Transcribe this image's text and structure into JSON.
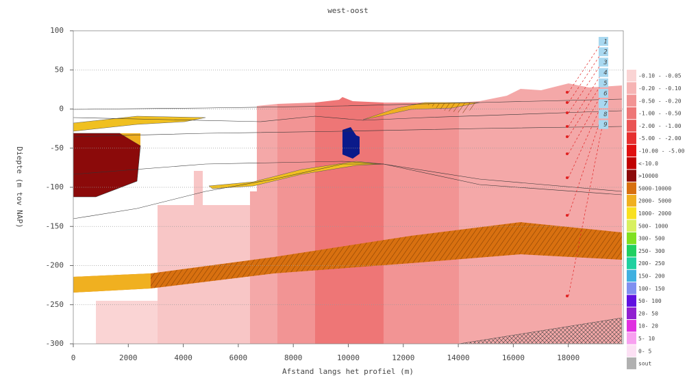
{
  "chart_data": {
    "type": "cross-section",
    "title": "west-oost",
    "xlabel": "Afstand langs het profiel (m)",
    "ylabel": "Diepte (m tov NAP)",
    "xlim": [
      0,
      20000
    ],
    "ylim": [
      -300,
      100
    ],
    "xticks": [
      0,
      2000,
      4000,
      6000,
      8000,
      10000,
      12000,
      14000,
      16000,
      18000
    ],
    "yticks": [
      100,
      50,
      0,
      -50,
      -100,
      -150,
      -200,
      -250,
      -300
    ],
    "grid": true,
    "legend": [
      {
        "label": "-0.10 - -0.05",
        "color": "#fad4d4"
      },
      {
        "label": "-0.20 - -0.10",
        "color": "#f6b4b4"
      },
      {
        "label": "-0.50 - -0.20",
        "color": "#f29494"
      },
      {
        "label": "-1.00 - -0.50",
        "color": "#ee7676"
      },
      {
        "label": "-2.00 - -1.00",
        "color": "#ea5454"
      },
      {
        "label": "-5.00 - -2.00",
        "color": "#e63030"
      },
      {
        "label": "-10.00 - -5.00",
        "color": "#e01010"
      },
      {
        "label": "<-10.0",
        "color": "#c00000"
      },
      {
        "label": ">10000",
        "color": "#8b0a0a"
      },
      {
        "label": "5000-10000",
        "color": "#d87010"
      },
      {
        "label": "2000- 5000",
        "color": "#f0b020"
      },
      {
        "label": "1000- 2000",
        "color": "#f8e020"
      },
      {
        "label": "500- 1000",
        "color": "#d8f060"
      },
      {
        "label": "300- 500",
        "color": "#80e020"
      },
      {
        "label": "250- 300",
        "color": "#20d060"
      },
      {
        "label": "200- 250",
        "color": "#20d0a0"
      },
      {
        "label": "150- 200",
        "color": "#40b0e0"
      },
      {
        "label": "100- 150",
        "color": "#8090f0"
      },
      {
        "label": "50- 100",
        "color": "#6010e0"
      },
      {
        "label": "20- 50",
        "color": "#9020d0"
      },
      {
        "label": "10- 20",
        "color": "#e030e0"
      },
      {
        "label": "5- 10",
        "color": "#f8a0f0"
      },
      {
        "label": "0- 5",
        "color": "#fce0f4"
      },
      {
        "label": "sout",
        "color": "#b0b0b0"
      }
    ],
    "wells": [
      "1",
      "2",
      "3",
      "4",
      "5",
      "6",
      "7",
      "8",
      "9"
    ]
  }
}
